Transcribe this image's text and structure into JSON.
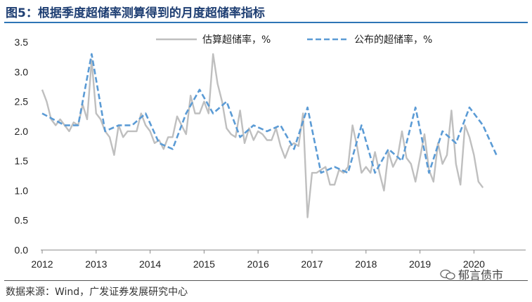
{
  "title": "图5：根据季度超储率测算得到的月度超储率指标",
  "source": "数据来源：Wind，广发证券发展研究中心",
  "watermark": "郁言债市",
  "colors": {
    "estimated": "#bfbfbf",
    "published": "#5b9bd5",
    "title": "#1f3f73"
  },
  "chart_data": {
    "type": "line",
    "ylim": [
      0,
      3.5
    ],
    "yticks": [
      "0.0",
      "0.5",
      "1.0",
      "1.5",
      "2.0",
      "2.5",
      "3.0",
      "3.5"
    ],
    "xlim": [
      "2012-01",
      "2020-10"
    ],
    "xticks": [
      "2012",
      "2013",
      "2014",
      "2015",
      "2016",
      "2017",
      "2018",
      "2019",
      "2020"
    ],
    "legend_position": "top",
    "series": [
      {
        "name": "估算超储率，%",
        "style": "solid",
        "color": "#bfbfbf",
        "points": [
          [
            "2012-01",
            2.7
          ],
          [
            "2012-02",
            2.5
          ],
          [
            "2012-03",
            2.2
          ],
          [
            "2012-04",
            2.1
          ],
          [
            "2012-05",
            2.2
          ],
          [
            "2012-06",
            2.1
          ],
          [
            "2012-07",
            2.0
          ],
          [
            "2012-08",
            2.15
          ],
          [
            "2012-09",
            2.1
          ],
          [
            "2012-10",
            2.45
          ],
          [
            "2012-11",
            2.2
          ],
          [
            "2012-12",
            3.2
          ],
          [
            "2013-01",
            2.3
          ],
          [
            "2013-02",
            2.2
          ],
          [
            "2013-03",
            2.0
          ],
          [
            "2013-04",
            1.9
          ],
          [
            "2013-05",
            1.6
          ],
          [
            "2013-06",
            2.1
          ],
          [
            "2013-07",
            1.9
          ],
          [
            "2013-08",
            2.0
          ],
          [
            "2013-09",
            2.0
          ],
          [
            "2013-10",
            2.0
          ],
          [
            "2013-11",
            2.3
          ],
          [
            "2013-12",
            2.1
          ],
          [
            "2014-01",
            2.0
          ],
          [
            "2014-02",
            1.8
          ],
          [
            "2014-03",
            1.85
          ],
          [
            "2014-04",
            1.7
          ],
          [
            "2014-05",
            1.9
          ],
          [
            "2014-06",
            1.9
          ],
          [
            "2014-07",
            2.25
          ],
          [
            "2014-08",
            2.1
          ],
          [
            "2014-09",
            1.95
          ],
          [
            "2014-10",
            2.6
          ],
          [
            "2014-11",
            2.3
          ],
          [
            "2014-12",
            2.3
          ],
          [
            "2015-01",
            2.5
          ],
          [
            "2015-02",
            2.3
          ],
          [
            "2015-03",
            3.3
          ],
          [
            "2015-04",
            2.8
          ],
          [
            "2015-05",
            2.5
          ],
          [
            "2015-06",
            2.05
          ],
          [
            "2015-07",
            1.95
          ],
          [
            "2015-08",
            1.9
          ],
          [
            "2015-09",
            2.35
          ],
          [
            "2015-10",
            1.8
          ],
          [
            "2015-11",
            2.05
          ],
          [
            "2015-12",
            1.85
          ],
          [
            "2016-01",
            2.0
          ],
          [
            "2016-02",
            1.95
          ],
          [
            "2016-03",
            1.85
          ],
          [
            "2016-04",
            1.85
          ],
          [
            "2016-05",
            2.05
          ],
          [
            "2016-06",
            1.75
          ],
          [
            "2016-07",
            1.55
          ],
          [
            "2016-08",
            1.75
          ],
          [
            "2016-09",
            1.8
          ],
          [
            "2016-10",
            1.75
          ],
          [
            "2016-11",
            2.3
          ],
          [
            "2016-12",
            0.55
          ],
          [
            "2017-01",
            1.3
          ],
          [
            "2017-02",
            1.3
          ],
          [
            "2017-03",
            1.35
          ],
          [
            "2017-04",
            1.4
          ],
          [
            "2017-05",
            1.1
          ],
          [
            "2017-06",
            1.1
          ],
          [
            "2017-07",
            1.35
          ],
          [
            "2017-08",
            1.3
          ],
          [
            "2017-09",
            1.4
          ],
          [
            "2017-10",
            2.1
          ],
          [
            "2017-11",
            1.75
          ],
          [
            "2017-12",
            1.3
          ],
          [
            "2018-01",
            1.4
          ],
          [
            "2018-02",
            1.3
          ],
          [
            "2018-03",
            1.65
          ],
          [
            "2018-04",
            1.3
          ],
          [
            "2018-05",
            1.0
          ],
          [
            "2018-06",
            1.65
          ],
          [
            "2018-07",
            1.4
          ],
          [
            "2018-08",
            1.55
          ],
          [
            "2018-09",
            2.0
          ],
          [
            "2018-10",
            1.55
          ],
          [
            "2018-11",
            1.45
          ],
          [
            "2018-12",
            1.15
          ],
          [
            "2019-01",
            1.55
          ],
          [
            "2019-02",
            1.95
          ],
          [
            "2019-03",
            1.35
          ],
          [
            "2019-04",
            1.15
          ],
          [
            "2019-05",
            1.8
          ],
          [
            "2019-06",
            1.45
          ],
          [
            "2019-07",
            1.6
          ],
          [
            "2019-08",
            2.35
          ],
          [
            "2019-09",
            1.45
          ],
          [
            "2019-10",
            1.1
          ],
          [
            "2019-11",
            2.1
          ],
          [
            "2019-12",
            1.9
          ],
          [
            "2020-01",
            1.6
          ],
          [
            "2020-02",
            1.15
          ],
          [
            "2020-03",
            1.05
          ]
        ]
      },
      {
        "name": "公布的超储率，%",
        "style": "dashed",
        "color": "#5b9bd5",
        "points": [
          [
            "2012-01",
            2.3
          ],
          [
            "2012-06",
            2.1
          ],
          [
            "2012-09",
            2.1
          ],
          [
            "2012-12",
            3.3
          ],
          [
            "2013-03",
            2.0
          ],
          [
            "2013-06",
            2.1
          ],
          [
            "2013-09",
            2.1
          ],
          [
            "2013-12",
            2.3
          ],
          [
            "2014-03",
            1.8
          ],
          [
            "2014-06",
            1.7
          ],
          [
            "2014-09",
            2.3
          ],
          [
            "2014-12",
            2.7
          ],
          [
            "2015-03",
            2.3
          ],
          [
            "2015-06",
            2.5
          ],
          [
            "2015-09",
            1.9
          ],
          [
            "2015-12",
            2.1
          ],
          [
            "2016-03",
            2.0
          ],
          [
            "2016-06",
            2.1
          ],
          [
            "2016-09",
            1.7
          ],
          [
            "2016-12",
            2.4
          ],
          [
            "2017-03",
            1.3
          ],
          [
            "2017-06",
            1.4
          ],
          [
            "2017-09",
            1.3
          ],
          [
            "2017-12",
            2.1
          ],
          [
            "2018-03",
            1.3
          ],
          [
            "2018-06",
            1.7
          ],
          [
            "2018-09",
            1.5
          ],
          [
            "2018-12",
            2.4
          ],
          [
            "2019-03",
            1.3
          ],
          [
            "2019-06",
            2.0
          ],
          [
            "2019-09",
            1.8
          ],
          [
            "2019-12",
            2.4
          ],
          [
            "2020-03",
            2.1
          ],
          [
            "2020-06",
            1.6
          ]
        ]
      }
    ]
  }
}
